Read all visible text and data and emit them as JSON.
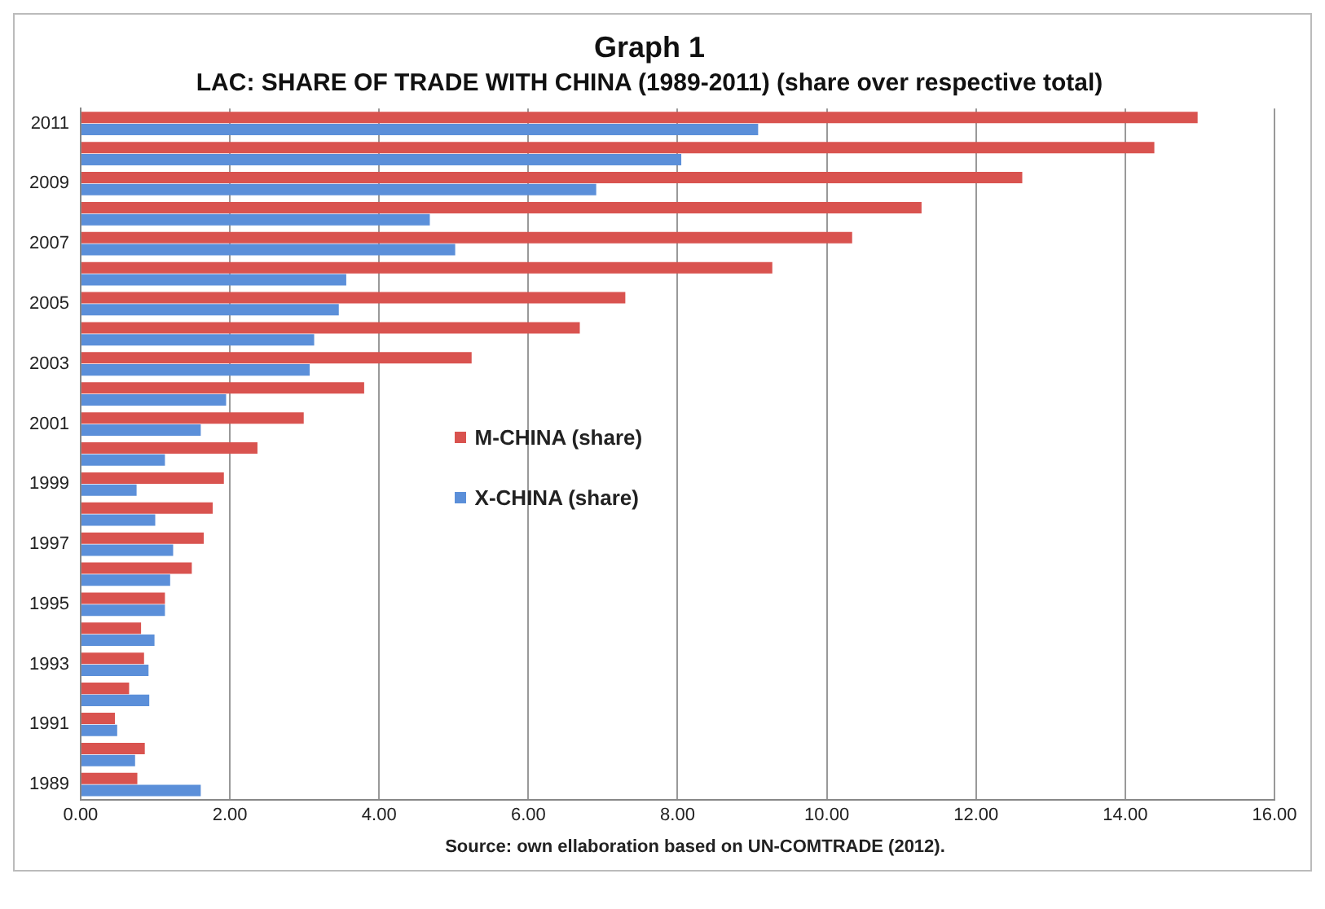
{
  "chart_data": {
    "type": "bar",
    "orientation": "horizontal",
    "title": "Graph 1",
    "subtitle": "LAC: SHARE OF TRADE WITH CHINA (1989-2011) (share over respective total)",
    "categories": [
      "2011",
      null,
      "2009",
      null,
      "2007",
      null,
      "2005",
      null,
      "2003",
      null,
      "2001",
      null,
      "1999",
      null,
      "1997",
      null,
      "1995",
      null,
      "1993",
      null,
      "1991",
      null,
      "1989"
    ],
    "series": [
      {
        "name": "M-CHINA (share)",
        "color": "#d9534f",
        "values": [
          14.97,
          14.39,
          12.62,
          11.27,
          10.34,
          9.27,
          7.3,
          6.69,
          5.24,
          3.8,
          2.99,
          2.37,
          1.92,
          1.77,
          1.65,
          1.49,
          1.13,
          0.81,
          0.85,
          0.65,
          0.46,
          0.86,
          0.76
        ]
      },
      {
        "name": "X-CHINA (share)",
        "color": "#5b8fd9",
        "values": [
          9.08,
          8.05,
          6.91,
          4.68,
          5.02,
          3.56,
          3.46,
          3.13,
          3.07,
          1.95,
          1.61,
          1.13,
          0.75,
          1.0,
          1.24,
          1.2,
          1.13,
          0.99,
          0.91,
          0.92,
          0.49,
          0.73,
          1.61
        ]
      }
    ],
    "xlim": [
      0,
      16
    ],
    "xticks": [
      {
        "value": 0,
        "label": "0.00"
      },
      {
        "value": 2,
        "label": "2.00"
      },
      {
        "value": 4,
        "label": "4.00"
      },
      {
        "value": 6,
        "label": "6.00"
      },
      {
        "value": 8,
        "label": "8.00"
      },
      {
        "value": 10,
        "label": "10.00"
      },
      {
        "value": 12,
        "label": "12.00"
      },
      {
        "value": 14,
        "label": "14.00"
      },
      {
        "value": 16,
        "label": "16.00"
      }
    ],
    "grid": "x",
    "legend": "center",
    "annotations": [
      "Source: own ellaboration based on UN-COMTRADE (2012)."
    ]
  }
}
